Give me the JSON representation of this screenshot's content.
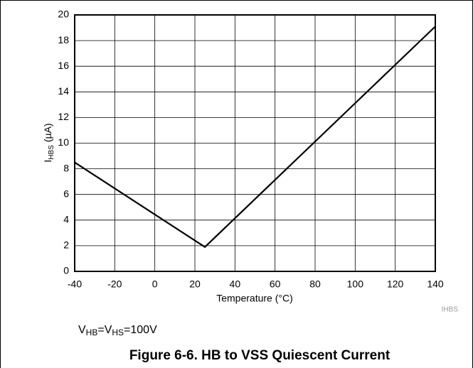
{
  "chart_data": {
    "type": "line",
    "x": [
      -40,
      25,
      140
    ],
    "values": [
      8.5,
      1.9,
      19.1
    ],
    "color": "#000000",
    "xlim": [
      -40,
      140
    ],
    "xticks": [
      -40,
      -20,
      0,
      20,
      40,
      60,
      80,
      100,
      120,
      140
    ],
    "ylim": [
      0,
      20
    ],
    "yticks": [
      0,
      2,
      4,
      6,
      8,
      10,
      12,
      14,
      16,
      18,
      20
    ],
    "grid": true,
    "xlabel": "Temperature (°C)",
    "ylabel": [
      "I",
      "HBS",
      "(µA)"
    ],
    "figure_id": "IHBS",
    "annotation": [
      "V",
      "HB",
      "=V",
      "HS",
      "=100V"
    ],
    "title": "Figure 6-6. HB to VSS Quiescent Current"
  }
}
